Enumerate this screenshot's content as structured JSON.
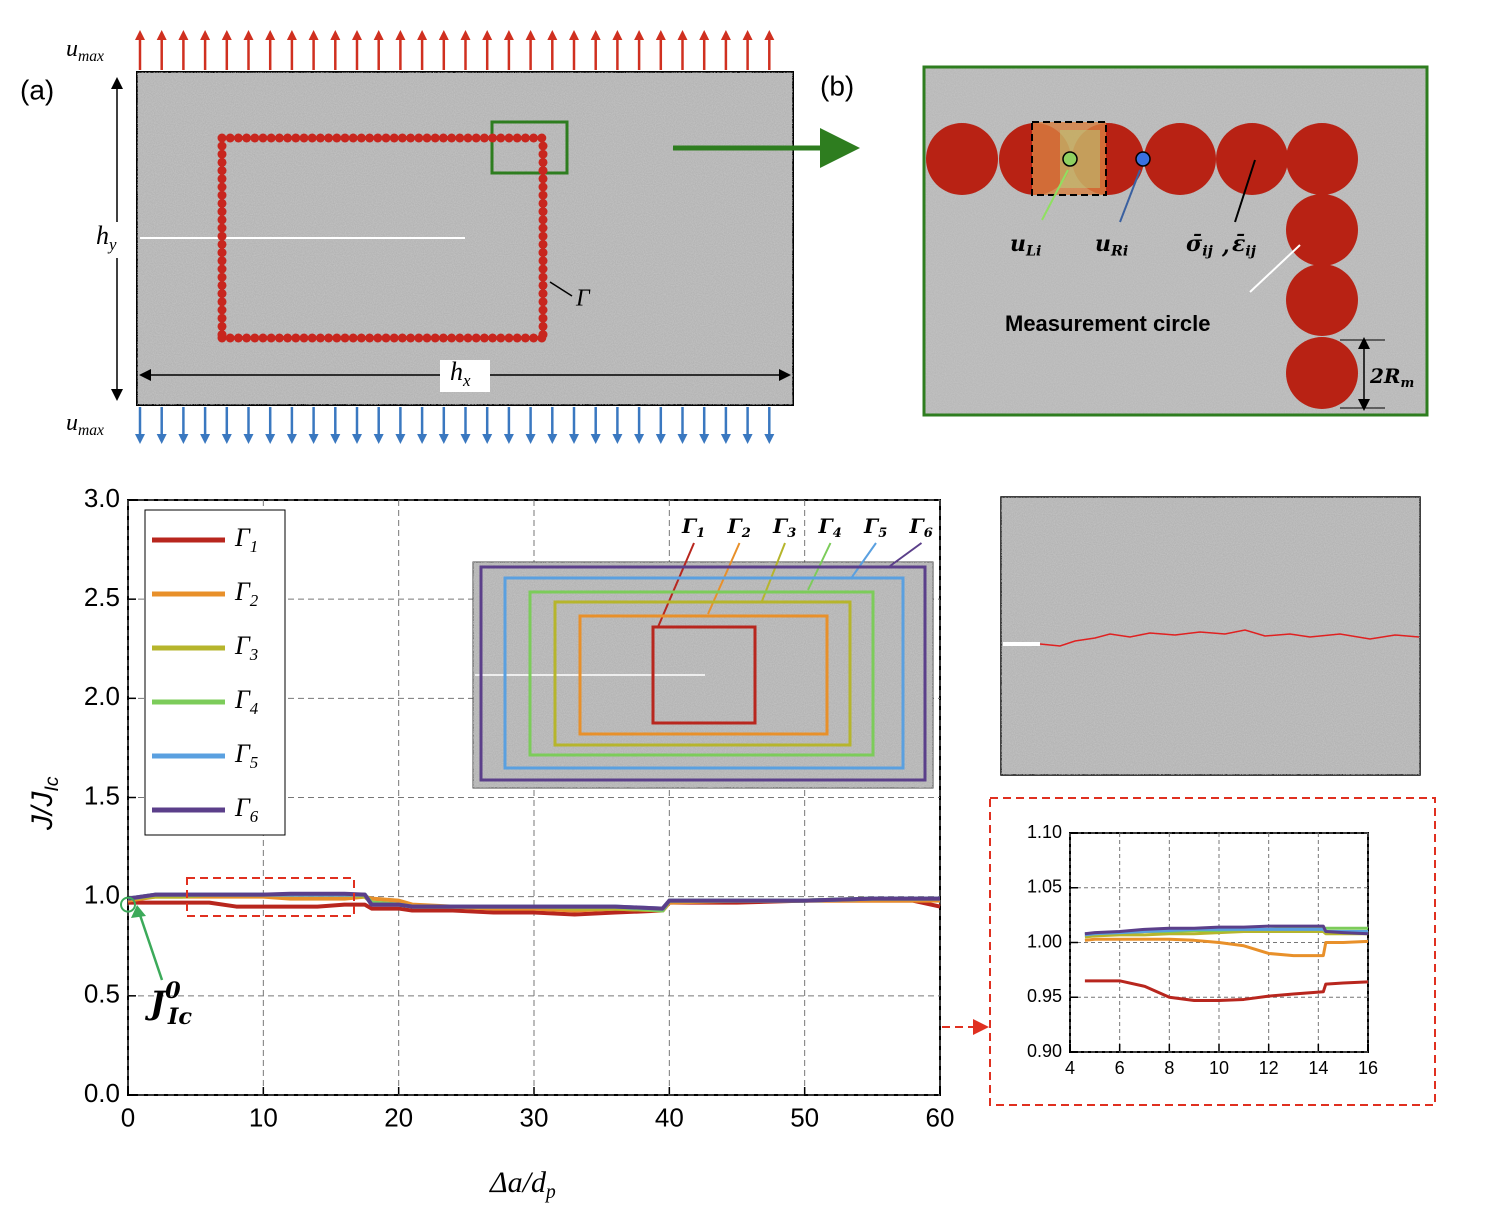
{
  "panel_a": {
    "label": "(a)",
    "u_top": {
      "base": "u",
      "sub": "max"
    },
    "u_bottom": {
      "base": "u",
      "sub": "max"
    },
    "hy": {
      "base": "h",
      "sub": "y"
    },
    "hx": {
      "base": "h",
      "sub": "x"
    },
    "contour": "Γ"
  },
  "panel_b": {
    "label": "(b)",
    "uL": {
      "base": "u",
      "sub": "Li"
    },
    "uR": {
      "base": "u",
      "sub": "Ri"
    },
    "sigma": {
      "base": "σ̄",
      "sub": "ij"
    },
    "sep": ",",
    "eps": {
      "base": "ε̄",
      "sub": "ij"
    },
    "circle_label": "Measurement circle",
    "radius": {
      "base": "2R",
      "sub": "m"
    }
  },
  "chart_data": [
    {
      "type": "line",
      "x_label": {
        "base": "Δa/d",
        "sub": "p"
      },
      "y_label": {
        "base": "J/J",
        "sub": "Ic"
      },
      "annotation": {
        "base": "J",
        "sup": "0",
        "sub": "Ic"
      },
      "x": [
        0,
        2,
        4,
        6,
        8,
        10,
        12,
        14,
        16,
        17.5,
        18,
        20,
        21,
        24,
        27,
        30,
        33,
        36,
        39.5,
        40,
        45,
        50,
        55,
        58,
        60
      ],
      "series": [
        {
          "name": "Γ",
          "subscript": "1",
          "color": "#b8261e",
          "values": [
            0.97,
            0.97,
            0.97,
            0.97,
            0.95,
            0.95,
            0.95,
            0.95,
            0.96,
            0.96,
            0.94,
            0.94,
            0.93,
            0.93,
            0.92,
            0.92,
            0.91,
            0.92,
            0.93,
            0.97,
            0.97,
            0.98,
            0.98,
            0.98,
            0.95
          ]
        },
        {
          "name": "Γ",
          "subscript": "2",
          "color": "#e8902a",
          "values": [
            0.98,
            1.0,
            1.0,
            1.0,
            1.0,
            1.0,
            0.99,
            0.99,
            0.99,
            1.0,
            0.99,
            0.98,
            0.96,
            0.95,
            0.94,
            0.94,
            0.93,
            0.94,
            0.93,
            0.97,
            0.98,
            0.98,
            0.98,
            0.98,
            0.98
          ]
        },
        {
          "name": "Γ",
          "subscript": "3",
          "color": "#b6b52c",
          "values": [
            0.99,
            1.0,
            1.0,
            1.01,
            1.01,
            1.01,
            1.01,
            1.01,
            1.01,
            1.0,
            0.97,
            0.96,
            0.95,
            0.95,
            0.95,
            0.95,
            0.94,
            0.94,
            0.93,
            0.98,
            0.98,
            0.98,
            0.99,
            0.99,
            0.99
          ]
        },
        {
          "name": "Γ",
          "subscript": "4",
          "color": "#7ccc5a",
          "values": [
            0.99,
            1.01,
            1.01,
            1.01,
            1.01,
            1.01,
            1.01,
            1.01,
            1.01,
            1.01,
            0.97,
            0.96,
            0.95,
            0.95,
            0.95,
            0.95,
            0.95,
            0.95,
            0.93,
            0.98,
            0.98,
            0.98,
            0.99,
            0.99,
            0.99
          ]
        },
        {
          "name": "Γ",
          "subscript": "5",
          "color": "#5aa0e0",
          "values": [
            0.99,
            1.01,
            1.01,
            1.01,
            1.01,
            1.01,
            1.01,
            1.01,
            1.01,
            1.01,
            0.96,
            0.96,
            0.95,
            0.95,
            0.95,
            0.95,
            0.95,
            0.95,
            0.94,
            0.98,
            0.98,
            0.98,
            0.99,
            0.99,
            0.99
          ]
        },
        {
          "name": "Γ",
          "subscript": "6",
          "color": "#5b3f8a",
          "values": [
            0.99,
            1.01,
            1.01,
            1.01,
            1.01,
            1.01,
            1.015,
            1.015,
            1.015,
            1.01,
            0.96,
            0.96,
            0.95,
            0.95,
            0.95,
            0.95,
            0.95,
            0.95,
            0.94,
            0.98,
            0.98,
            0.98,
            0.99,
            0.99,
            0.99
          ]
        }
      ],
      "xlim": [
        0,
        60
      ],
      "ylim": [
        0,
        3
      ],
      "xticks": [
        0,
        10,
        20,
        30,
        40,
        50,
        60
      ],
      "yticks": [
        {
          "value": 0,
          "label": "0.0"
        },
        {
          "value": 0.5,
          "label": "0.5"
        },
        {
          "value": 1,
          "label": "1.0"
        },
        {
          "value": 1.5,
          "label": "1.5"
        },
        {
          "value": 2,
          "label": "2.0"
        },
        {
          "value": 2.5,
          "label": "2.5"
        },
        {
          "value": 3,
          "label": "3.0"
        }
      ],
      "grid": true,
      "legend": "upper left"
    },
    {
      "type": "line",
      "x": [
        4.6,
        5,
        6,
        7,
        8,
        9,
        10,
        11,
        12,
        13,
        14.2,
        14.3,
        15,
        16
      ],
      "series": [
        {
          "name": "Γ",
          "subscript": "1",
          "color": "#b8261e",
          "values": [
            0.965,
            0.965,
            0.965,
            0.96,
            0.95,
            0.947,
            0.947,
            0.948,
            0.951,
            0.953,
            0.955,
            0.962,
            0.963,
            0.964
          ]
        },
        {
          "name": "Γ",
          "subscript": "2",
          "color": "#e8902a",
          "values": [
            1.002,
            1.003,
            1.003,
            1.003,
            1.003,
            1.002,
            1.0,
            0.997,
            0.99,
            0.988,
            0.988,
            1.0,
            1.0,
            1.001
          ]
        },
        {
          "name": "Γ",
          "subscript": "3",
          "color": "#b6b52c",
          "values": [
            1.005,
            1.006,
            1.007,
            1.007,
            1.008,
            1.008,
            1.009,
            1.01,
            1.01,
            1.01,
            1.01,
            1.008,
            1.008,
            1.008
          ]
        },
        {
          "name": "Γ",
          "subscript": "4",
          "color": "#7ccc5a",
          "values": [
            1.008,
            1.008,
            1.009,
            1.01,
            1.01,
            1.011,
            1.011,
            1.012,
            1.012,
            1.013,
            1.013,
            1.013,
            1.013,
            1.013
          ]
        },
        {
          "name": "Γ",
          "subscript": "5",
          "color": "#5aa0e0",
          "values": [
            1.007,
            1.008,
            1.009,
            1.01,
            1.011,
            1.012,
            1.012,
            1.012,
            1.012,
            1.012,
            1.012,
            1.01,
            1.01,
            1.01
          ]
        },
        {
          "name": "Γ",
          "subscript": "6",
          "color": "#5b3f8a",
          "values": [
            1.008,
            1.009,
            1.01,
            1.012,
            1.013,
            1.013,
            1.014,
            1.014,
            1.015,
            1.015,
            1.015,
            1.01,
            1.009,
            1.008
          ]
        }
      ],
      "xlim": [
        4,
        16
      ],
      "ylim": [
        0.9,
        1.1
      ],
      "xticks": [
        4,
        6,
        8,
        10,
        12,
        14,
        16
      ],
      "yticks": [
        {
          "value": 0.9,
          "label": "0.90"
        },
        {
          "value": 0.95,
          "label": "0.95"
        },
        {
          "value": 1,
          "label": "1.00"
        },
        {
          "value": 1.05,
          "label": "1.05"
        },
        {
          "value": 1.1,
          "label": "1.10"
        }
      ],
      "grid": true
    }
  ]
}
